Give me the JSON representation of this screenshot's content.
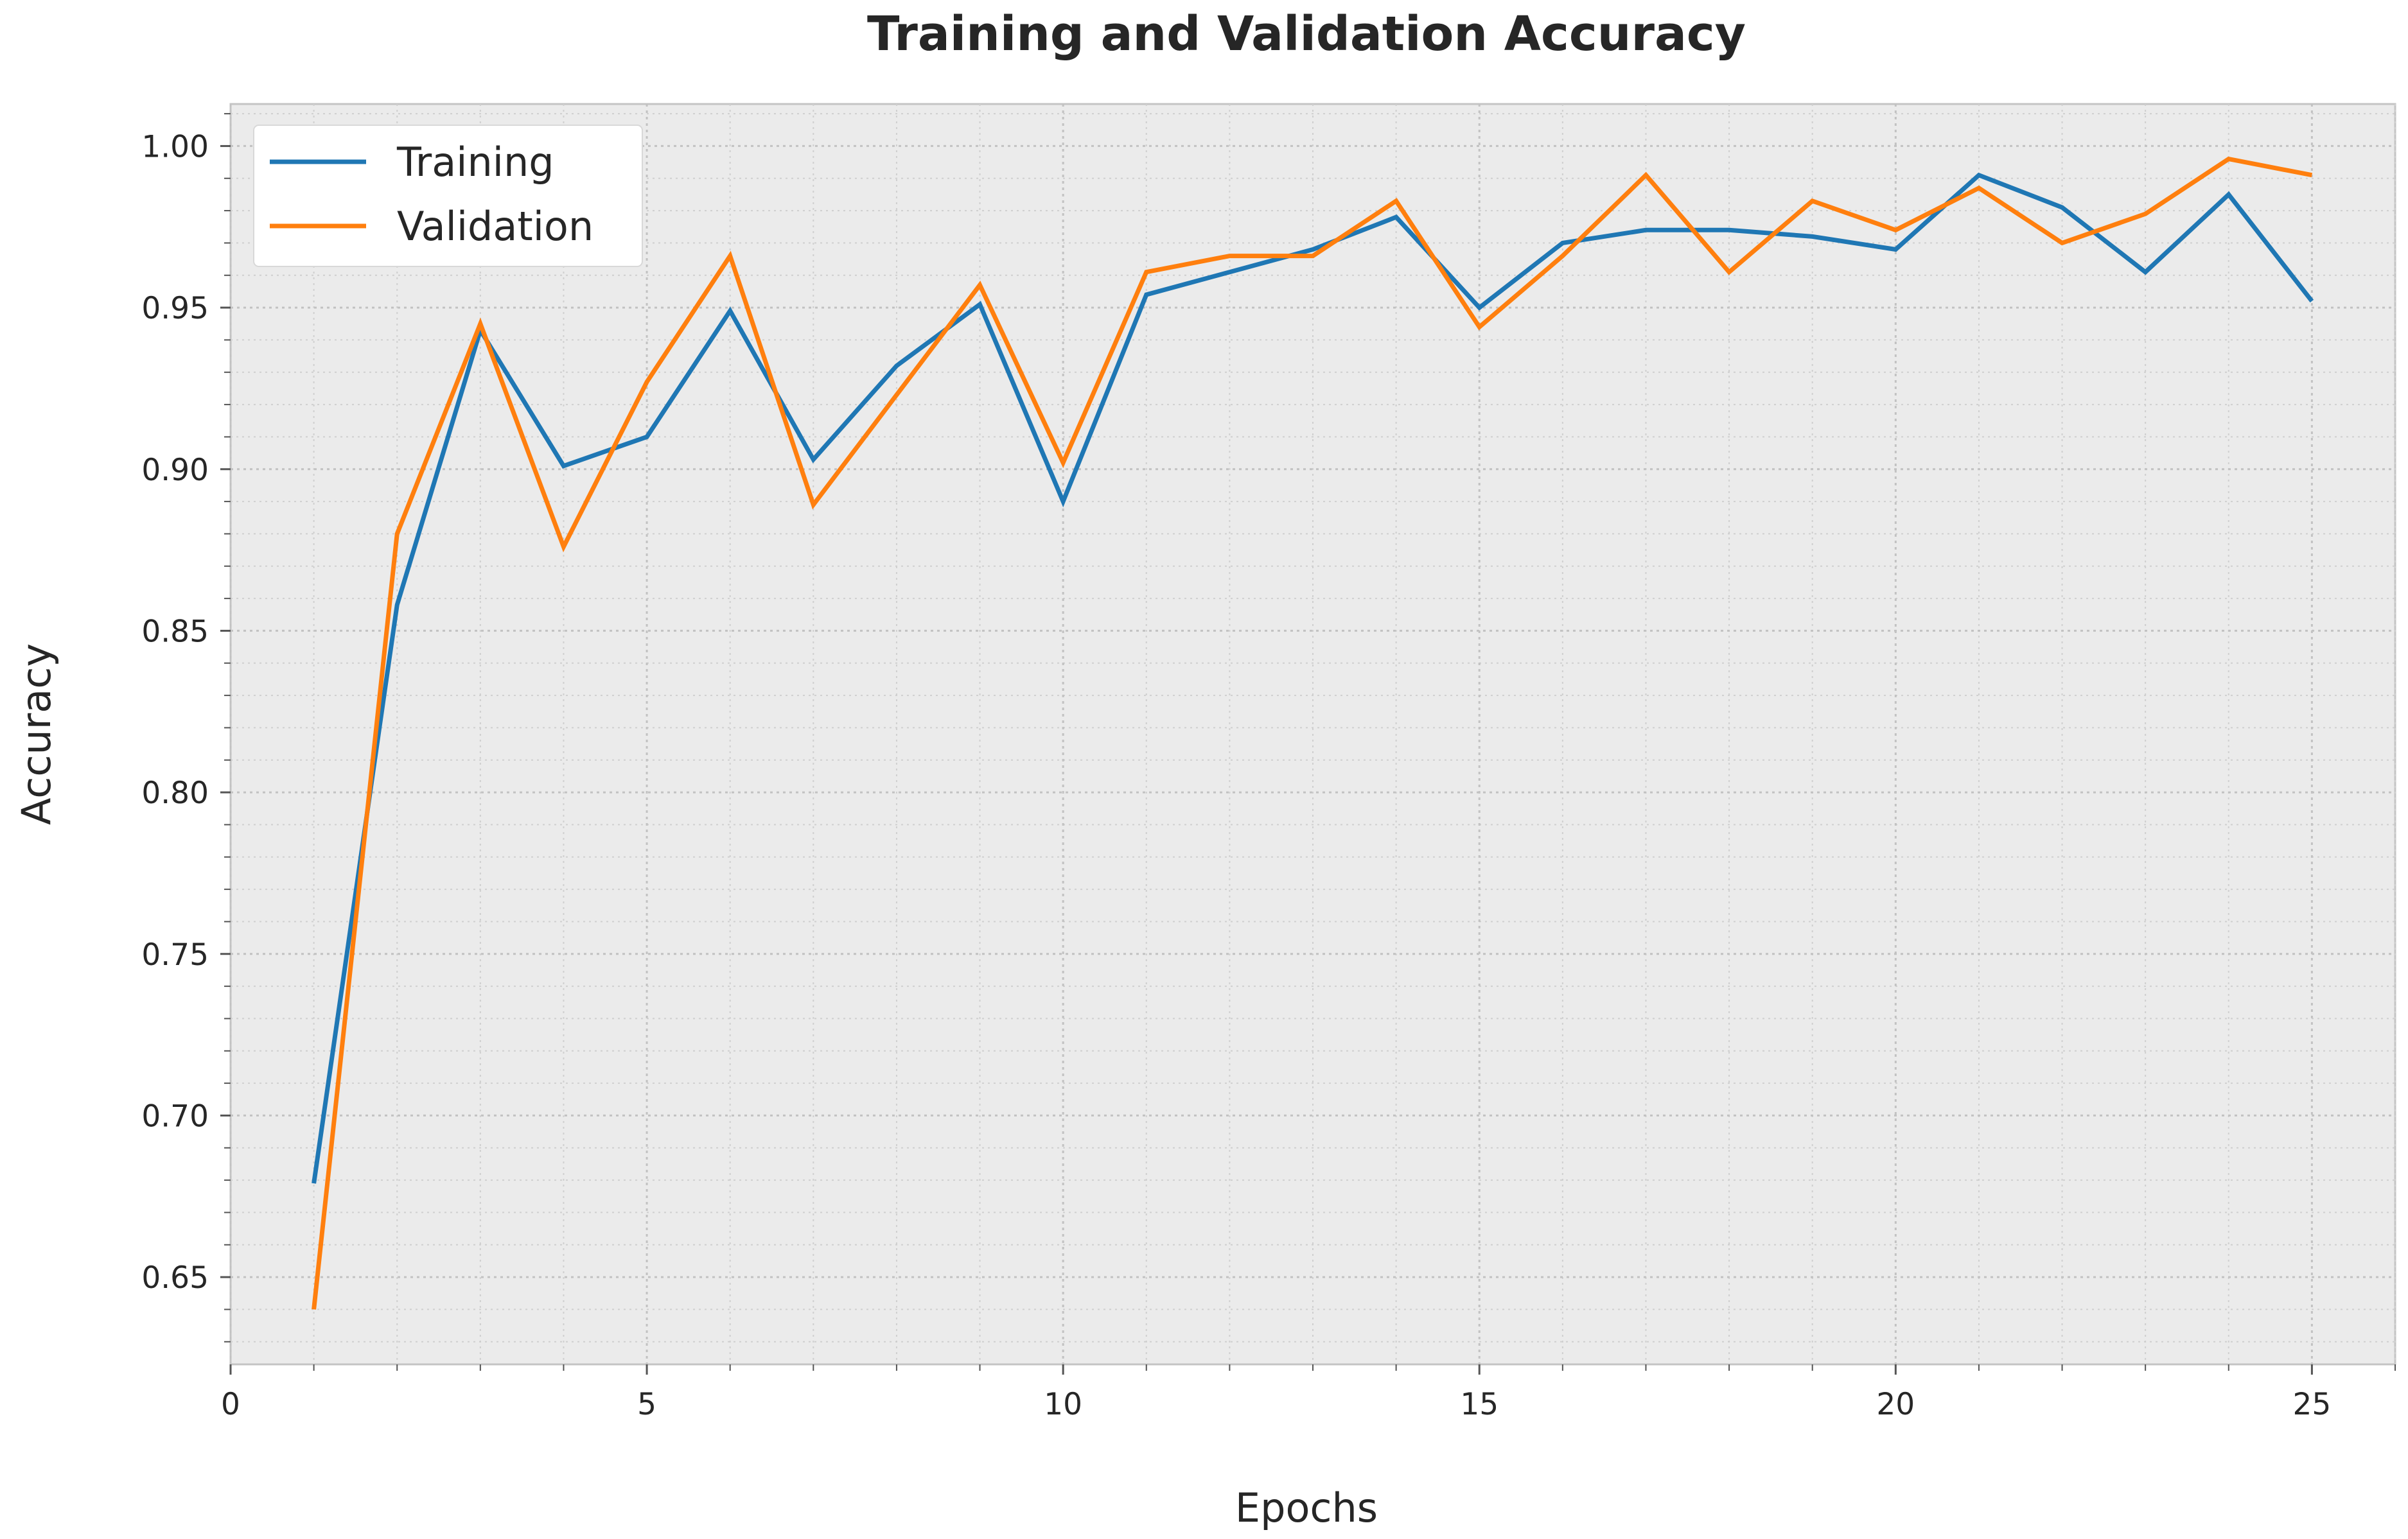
{
  "chart_data": {
    "type": "line",
    "title": "Training and Validation Accuracy",
    "xlabel": "Epochs",
    "ylabel": "Accuracy",
    "xlim": [
      0,
      26
    ],
    "ylim": [
      0.623,
      1.013
    ],
    "xticks": [
      0,
      5,
      10,
      15,
      20,
      25
    ],
    "yticks": [
      0.65,
      0.7,
      0.75,
      0.8,
      0.85,
      0.9,
      0.95,
      1.0
    ],
    "grid": true,
    "minor_grid": true,
    "legend_position": "upper-left",
    "x": [
      1,
      2,
      3,
      4,
      5,
      6,
      7,
      8,
      9,
      10,
      11,
      12,
      13,
      14,
      15,
      16,
      17,
      18,
      19,
      20,
      21,
      22,
      23,
      24,
      25
    ],
    "series": [
      {
        "name": "Training",
        "color": "#1f77b4",
        "values": [
          0.679,
          0.858,
          0.943,
          0.901,
          0.91,
          0.949,
          0.903,
          0.932,
          0.951,
          0.89,
          0.954,
          0.961,
          0.968,
          0.978,
          0.95,
          0.97,
          0.974,
          0.974,
          0.972,
          0.968,
          0.991,
          0.981,
          0.961,
          0.985,
          0.952
        ]
      },
      {
        "name": "Validation",
        "color": "#ff7f0e",
        "values": [
          0.64,
          0.88,
          0.945,
          0.876,
          0.927,
          0.966,
          0.889,
          0.923,
          0.957,
          0.902,
          0.961,
          0.966,
          0.966,
          0.983,
          0.944,
          0.966,
          0.991,
          0.961,
          0.983,
          0.974,
          0.987,
          0.97,
          0.979,
          0.996,
          0.991
        ]
      }
    ]
  }
}
